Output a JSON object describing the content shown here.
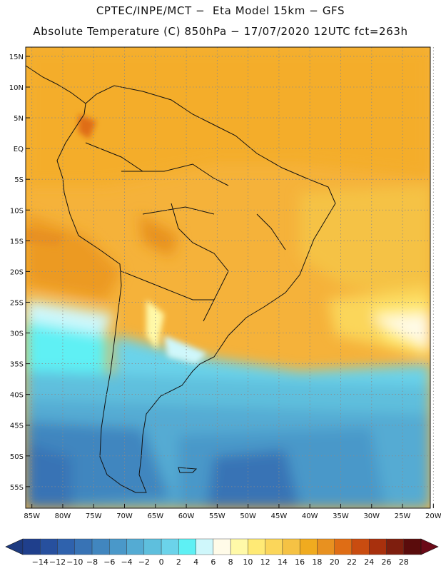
{
  "title": {
    "line1": "CPTEC/INPE/MCT −  Eta Model 15km − GFS",
    "line2": "Absolute Temperature (C) 850hPa − 17/07/2020 12UTC fct=263h"
  },
  "map": {
    "lat_labels": [
      "15N",
      "10N",
      "5N",
      "EQ",
      "5S",
      "10S",
      "15S",
      "20S",
      "25S",
      "30S",
      "35S",
      "40S",
      "45S",
      "50S",
      "55S"
    ],
    "lon_labels": [
      "85W",
      "80W",
      "75W",
      "70W",
      "65W",
      "60W",
      "55W",
      "50W",
      "45W",
      "40W",
      "35W",
      "30W",
      "25W",
      "20W"
    ],
    "lat_values": [
      15,
      10,
      5,
      0,
      -5,
      -10,
      -15,
      -20,
      -25,
      -30,
      -35,
      -40,
      -45,
      -50,
      -55
    ],
    "lon_values": [
      -85,
      -80,
      -75,
      -70,
      -65,
      -60,
      -55,
      -50,
      -45,
      -40,
      -35,
      -30,
      -25,
      -20
    ],
    "lat_range": [
      -58.5,
      16.5
    ],
    "lon_range": [
      -86,
      -20.5
    ]
  },
  "colorbar": {
    "labels": [
      "−14",
      "−12",
      "−10",
      "−8",
      "−6",
      "−4",
      "−2",
      "0",
      "2",
      "4",
      "6",
      "8",
      "10",
      "12",
      "14",
      "16",
      "18",
      "20",
      "22",
      "24",
      "26",
      "28"
    ],
    "colors": [
      "#1f3f8c",
      "#27509e",
      "#2f62ad",
      "#3873b5",
      "#4186bf",
      "#4a98c9",
      "#54abd3",
      "#5ebfdd",
      "#6bd3ea",
      "#5ef0f4",
      "#cff7fb",
      "#fffbe8",
      "#fff9a8",
      "#ffea75",
      "#fbd65a",
      "#f5c244",
      "#f0ab1f",
      "#e89120",
      "#df6d15",
      "#c94c10",
      "#a8300d",
      "#7e1e0e",
      "#5a0c0c"
    ],
    "under_color": "#1d3a80",
    "over_color": "#6b0a18"
  }
}
